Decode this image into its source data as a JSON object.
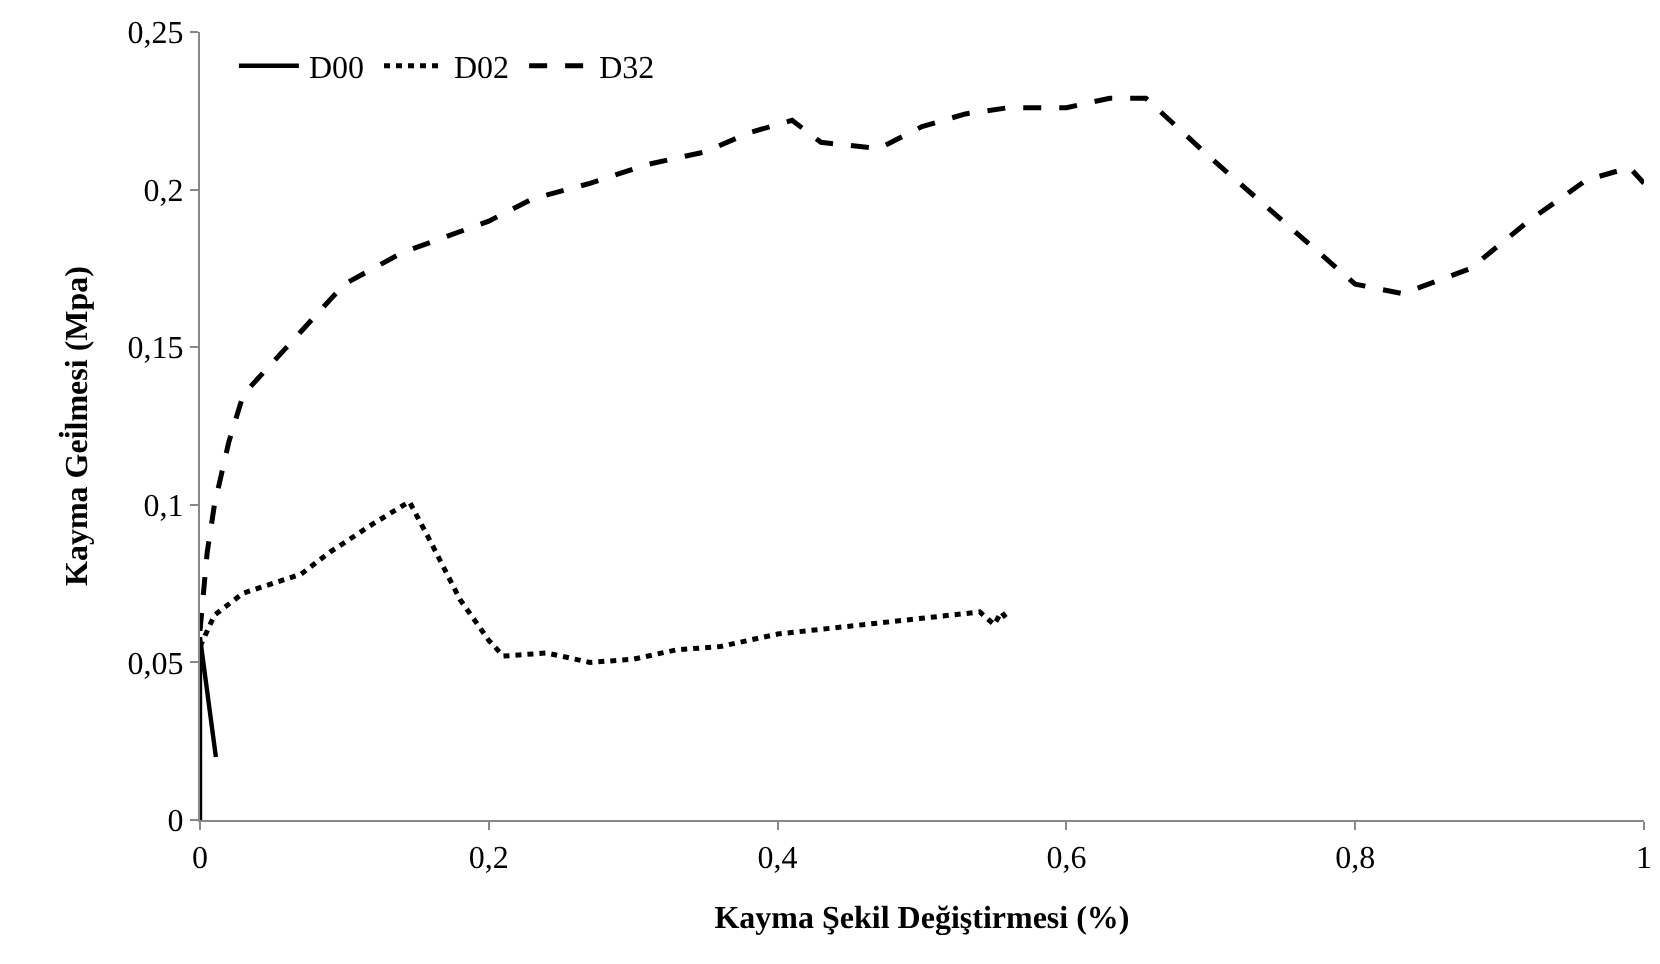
{
  "chart_data": {
    "type": "line",
    "xlabel": "Kayma Şekil Değiştirmesi (%)",
    "ylabel": "Kayma Gei̇lmesi (Mpa)",
    "xlim": [
      0,
      1
    ],
    "ylim": [
      0,
      0.25
    ],
    "xticks": [
      0,
      {
        "value": 0.2,
        "label": "0,2"
      },
      {
        "value": 0.4,
        "label": "0,4"
      },
      {
        "value": 0.6,
        "label": "0,6"
      },
      {
        "value": 0.8,
        "label": "0,8"
      },
      1
    ],
    "yticks": [
      0,
      {
        "value": 0.05,
        "label": "0,05"
      },
      {
        "value": 0.1,
        "label": "0,1"
      },
      {
        "value": 0.15,
        "label": "0,15"
      },
      {
        "value": 0.2,
        "label": "0,2"
      },
      {
        "value": 0.25,
        "label": "0,25"
      }
    ],
    "legend": "top left",
    "marker": "none",
    "series": [
      {
        "name": "D00",
        "color": "#000000",
        "line_style": "solid",
        "x": [
          0,
          0,
          0.011
        ],
        "values": [
          0,
          0.058,
          0.02
        ]
      },
      {
        "name": "D02",
        "color": "#000000",
        "line_style": "dotted",
        "x": [
          0,
          0.01,
          0.03,
          0.05,
          0.07,
          0.09,
          0.12,
          0.145,
          0.16,
          0.18,
          0.2,
          0.21,
          0.24,
          0.27,
          0.3,
          0.33,
          0.36,
          0.4,
          0.44,
          0.48,
          0.52,
          0.54,
          0.55,
          0.555,
          0.56
        ],
        "values": [
          0.055,
          0.065,
          0.072,
          0.075,
          0.078,
          0.085,
          0.094,
          0.101,
          0.088,
          0.07,
          0.057,
          0.052,
          0.053,
          0.05,
          0.051,
          0.054,
          0.055,
          0.059,
          0.061,
          0.063,
          0.065,
          0.066,
          0.062,
          0.066,
          0.063
        ]
      },
      {
        "name": "D32",
        "color": "#000000",
        "line_style": "dashed",
        "x": [
          0,
          0.005,
          0.01,
          0.02,
          0.03,
          0.05,
          0.07,
          0.09,
          0.1,
          0.12,
          0.14,
          0.17,
          0.2,
          0.23,
          0.27,
          0.31,
          0.35,
          0.38,
          0.41,
          0.43,
          0.47,
          0.5,
          0.53,
          0.56,
          0.6,
          0.63,
          0.655,
          0.7,
          0.75,
          0.8,
          0.833,
          0.88,
          0.92,
          0.96,
          0.99,
          1.0
        ],
        "values": [
          0.06,
          0.085,
          0.1,
          0.12,
          0.135,
          0.145,
          0.155,
          0.165,
          0.17,
          0.175,
          0.18,
          0.185,
          0.19,
          0.197,
          0.202,
          0.208,
          0.212,
          0.218,
          0.222,
          0.215,
          0.213,
          0.22,
          0.224,
          0.226,
          0.226,
          0.229,
          0.229,
          0.21,
          0.19,
          0.17,
          0.167,
          0.175,
          0.19,
          0.203,
          0.207,
          0.202
        ]
      }
    ]
  }
}
